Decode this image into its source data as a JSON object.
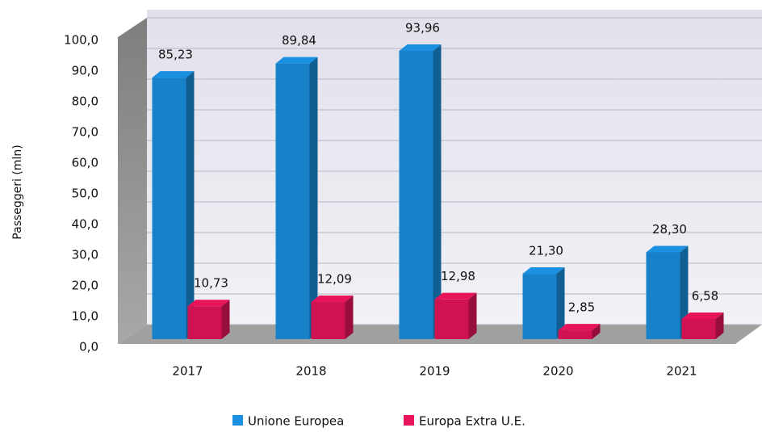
{
  "chart_data": {
    "type": "bar3d",
    "y_label": "Passeggeri (mln)",
    "categories": [
      "2017",
      "2018",
      "2019",
      "2020",
      "2021"
    ],
    "series": [
      {
        "name": "Unione Europea",
        "color": "#1a90e0",
        "values": [
          85.23,
          89.84,
          93.96,
          21.3,
          28.3
        ],
        "value_labels": [
          "85,23",
          "89,84",
          "93,96",
          "21,30",
          "28,30"
        ]
      },
      {
        "name": "Europa Extra U.E.",
        "color": "#e8145a",
        "values": [
          10.73,
          12.09,
          12.98,
          2.85,
          6.58
        ],
        "value_labels": [
          "10,73",
          "12,09",
          "12,98",
          "2,85",
          "6,58"
        ]
      }
    ],
    "ylim": [
      0,
      100
    ],
    "yticks": [
      {
        "value": 0,
        "label": "0,0"
      },
      {
        "value": 10,
        "label": "10,0"
      },
      {
        "value": 20,
        "label": "20,0"
      },
      {
        "value": 30,
        "label": "30,0"
      },
      {
        "value": 40,
        "label": "40,0"
      },
      {
        "value": 50,
        "label": "50,0"
      },
      {
        "value": 60,
        "label": "60,0"
      },
      {
        "value": 70,
        "label": "70,0"
      },
      {
        "value": 80,
        "label": "80,0"
      },
      {
        "value": 90,
        "label": "90,0"
      },
      {
        "value": 100,
        "label": "100,0"
      }
    ],
    "grid": true,
    "legend": "bottom"
  }
}
